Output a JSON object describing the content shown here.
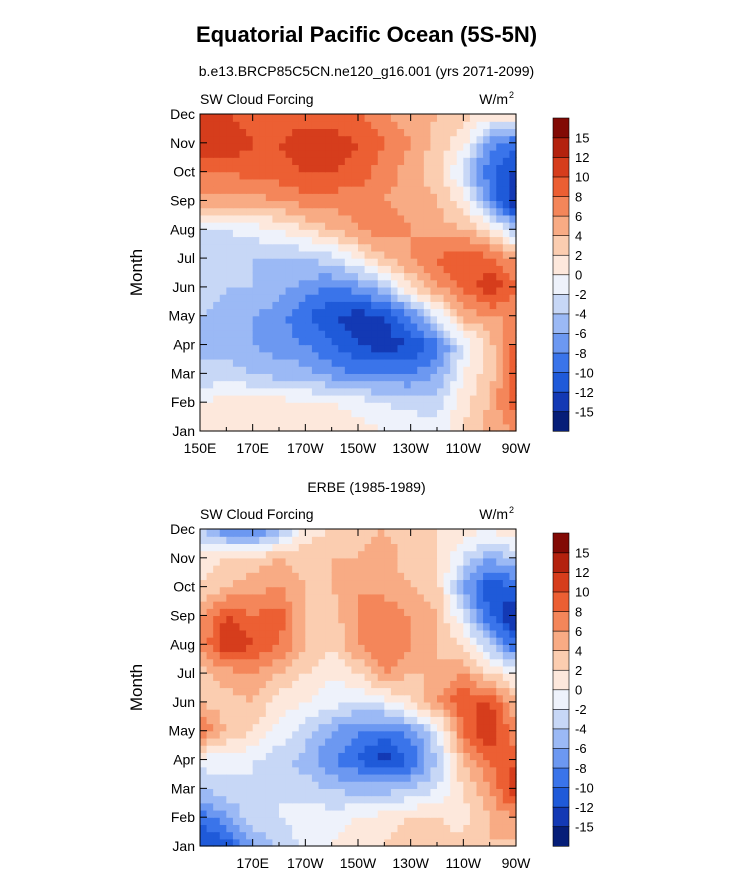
{
  "figure": {
    "title": "Equatorial Pacific Ocean (5S-5N)",
    "colors": [
      "#061e78",
      "#1339b4",
      "#1f5ad9",
      "#3a74ea",
      "#6c98f1",
      "#9bb9f5",
      "#c7d7f6",
      "#eef2fb",
      "#fde8dc",
      "#fbcdb0",
      "#f8ab84",
      "#f4865a",
      "#ec5f33",
      "#d63d1c",
      "#b3220e",
      "#820a05"
    ]
  },
  "chart_data": [
    {
      "type": "heatmap",
      "title": "b.e13.BRCP85C5CN.ne120_g16.001 (yrs 2071-2099)",
      "variable_label": "SW Cloud Forcing",
      "units_label": "W/m",
      "units_sup": "2",
      "ylabel": "Month",
      "y_ticks": [
        "Jan",
        "Feb",
        "Mar",
        "Apr",
        "May",
        "Jun",
        "Jul",
        "Aug",
        "Sep",
        "Oct",
        "Nov",
        "Dec"
      ],
      "x_ticks": [
        "150E",
        "170E",
        "170W",
        "150W",
        "130W",
        "110W",
        "90W"
      ],
      "colorbar_labels": [
        "-15",
        "-12",
        "-10",
        "-8",
        "-6",
        "-4",
        "-2",
        "0",
        "2",
        "4",
        "6",
        "8",
        "10",
        "12",
        "15"
      ],
      "x": [
        150,
        160,
        170,
        180,
        190,
        200,
        210,
        220,
        230,
        240,
        250,
        260,
        270
      ],
      "y": [
        "Jan",
        "Feb",
        "Mar",
        "Apr",
        "May",
        "Jun",
        "Jul",
        "Aug",
        "Sep",
        "Oct",
        "Nov",
        "Dec"
      ],
      "z": [
        [
          1,
          2,
          2,
          2,
          2,
          2,
          1,
          0,
          0,
          -1,
          2,
          5,
          6
        ],
        [
          0,
          1,
          1,
          1,
          0,
          0,
          -1,
          -2,
          -3,
          -3,
          1,
          4,
          10
        ],
        [
          -4,
          -3,
          -4,
          -5,
          -5,
          -7,
          -8,
          -8,
          -8,
          -6,
          0,
          3,
          10
        ],
        [
          -4,
          -5,
          -6,
          -7,
          -8,
          -10,
          -12,
          -13,
          -12,
          -9,
          -2,
          3,
          9
        ],
        [
          -4,
          -5,
          -6,
          -7,
          -10,
          -12,
          -13,
          -12,
          -8,
          -2,
          5,
          6,
          6
        ],
        [
          -3,
          -4,
          -4,
          -5,
          -7,
          -8,
          -7,
          -4,
          2,
          6,
          8,
          12,
          8
        ],
        [
          -2,
          -3,
          -4,
          -4,
          -4,
          -3,
          0,
          4,
          6,
          8,
          10,
          8,
          6
        ],
        [
          -2,
          -2,
          -1,
          0,
          2,
          4,
          6,
          7,
          6,
          5,
          4,
          2,
          -5
        ],
        [
          5,
          5,
          5,
          6,
          7,
          7,
          7,
          6,
          5,
          4,
          1,
          -7,
          -15
        ],
        [
          8,
          8,
          9,
          9,
          10,
          10,
          9,
          7,
          5,
          3,
          -3,
          -10,
          -12
        ],
        [
          12,
          12,
          10,
          10,
          11,
          11,
          10,
          8,
          6,
          3,
          1,
          -7,
          -10
        ],
        [
          10,
          10,
          9,
          9,
          9,
          9,
          8,
          6,
          5,
          4,
          3,
          1,
          2
        ]
      ]
    },
    {
      "type": "heatmap",
      "title": "ERBE (1985-1989)",
      "variable_label": "SW Cloud Forcing",
      "units_label": "W/m",
      "units_sup": "2",
      "ylabel": "Month",
      "y_ticks": [
        "Jan",
        "Feb",
        "Mar",
        "Apr",
        "May",
        "Jun",
        "Jul",
        "Aug",
        "Sep",
        "Oct",
        "Nov",
        "Dec"
      ],
      "x_ticks": [
        "170E",
        "170W",
        "150W",
        "130W",
        "110W",
        "90W"
      ],
      "colorbar_labels": [
        "-15",
        "-12",
        "-10",
        "-8",
        "-6",
        "-4",
        "-2",
        "0",
        "2",
        "4",
        "6",
        "8",
        "10",
        "12",
        "15"
      ],
      "x": [
        150,
        160,
        170,
        180,
        190,
        200,
        210,
        220,
        230,
        240,
        250,
        260,
        270
      ],
      "y": [
        "Jan",
        "Feb",
        "Mar",
        "Apr",
        "May",
        "Jun",
        "Jul",
        "Aug",
        "Sep",
        "Oct",
        "Nov",
        "Dec"
      ],
      "z": [
        [
          -12,
          -12,
          -6,
          -4,
          -1,
          0,
          1,
          2,
          3,
          3,
          3,
          4,
          3
        ],
        [
          -10,
          -6,
          -3,
          -2,
          -1,
          -1,
          0,
          1,
          2,
          2,
          1,
          4,
          6
        ],
        [
          -4,
          -3,
          -2,
          -2,
          -3,
          -4,
          -5,
          -5,
          -4,
          -2,
          2,
          6,
          12
        ],
        [
          -1,
          -1,
          -2,
          -3,
          -5,
          -8,
          -10,
          -13,
          -10,
          -4,
          4,
          8,
          10
        ],
        [
          8,
          4,
          2,
          -1,
          -3,
          -6,
          -8,
          -9,
          -7,
          -2,
          8,
          12,
          6
        ],
        [
          4,
          3,
          4,
          1,
          0,
          -1,
          -2,
          -1,
          2,
          6,
          10,
          10,
          4
        ],
        [
          3,
          5,
          6,
          4,
          2,
          0,
          2,
          6,
          4,
          4,
          6,
          2,
          0
        ],
        [
          6,
          12,
          10,
          8,
          4,
          2,
          6,
          8,
          6,
          4,
          2,
          -4,
          -10
        ],
        [
          6,
          10,
          8,
          9,
          4,
          3,
          6,
          8,
          6,
          4,
          -2,
          -10,
          -15
        ],
        [
          2,
          4,
          5,
          6,
          4,
          4,
          6,
          5,
          4,
          3,
          -6,
          -12,
          -10
        ],
        [
          1,
          2,
          3,
          4,
          3,
          4,
          4,
          5,
          3,
          2,
          -2,
          -6,
          -4
        ],
        [
          -4,
          -8,
          -9,
          -6,
          1,
          2,
          3,
          4,
          3,
          2,
          1,
          0,
          2
        ]
      ]
    }
  ]
}
